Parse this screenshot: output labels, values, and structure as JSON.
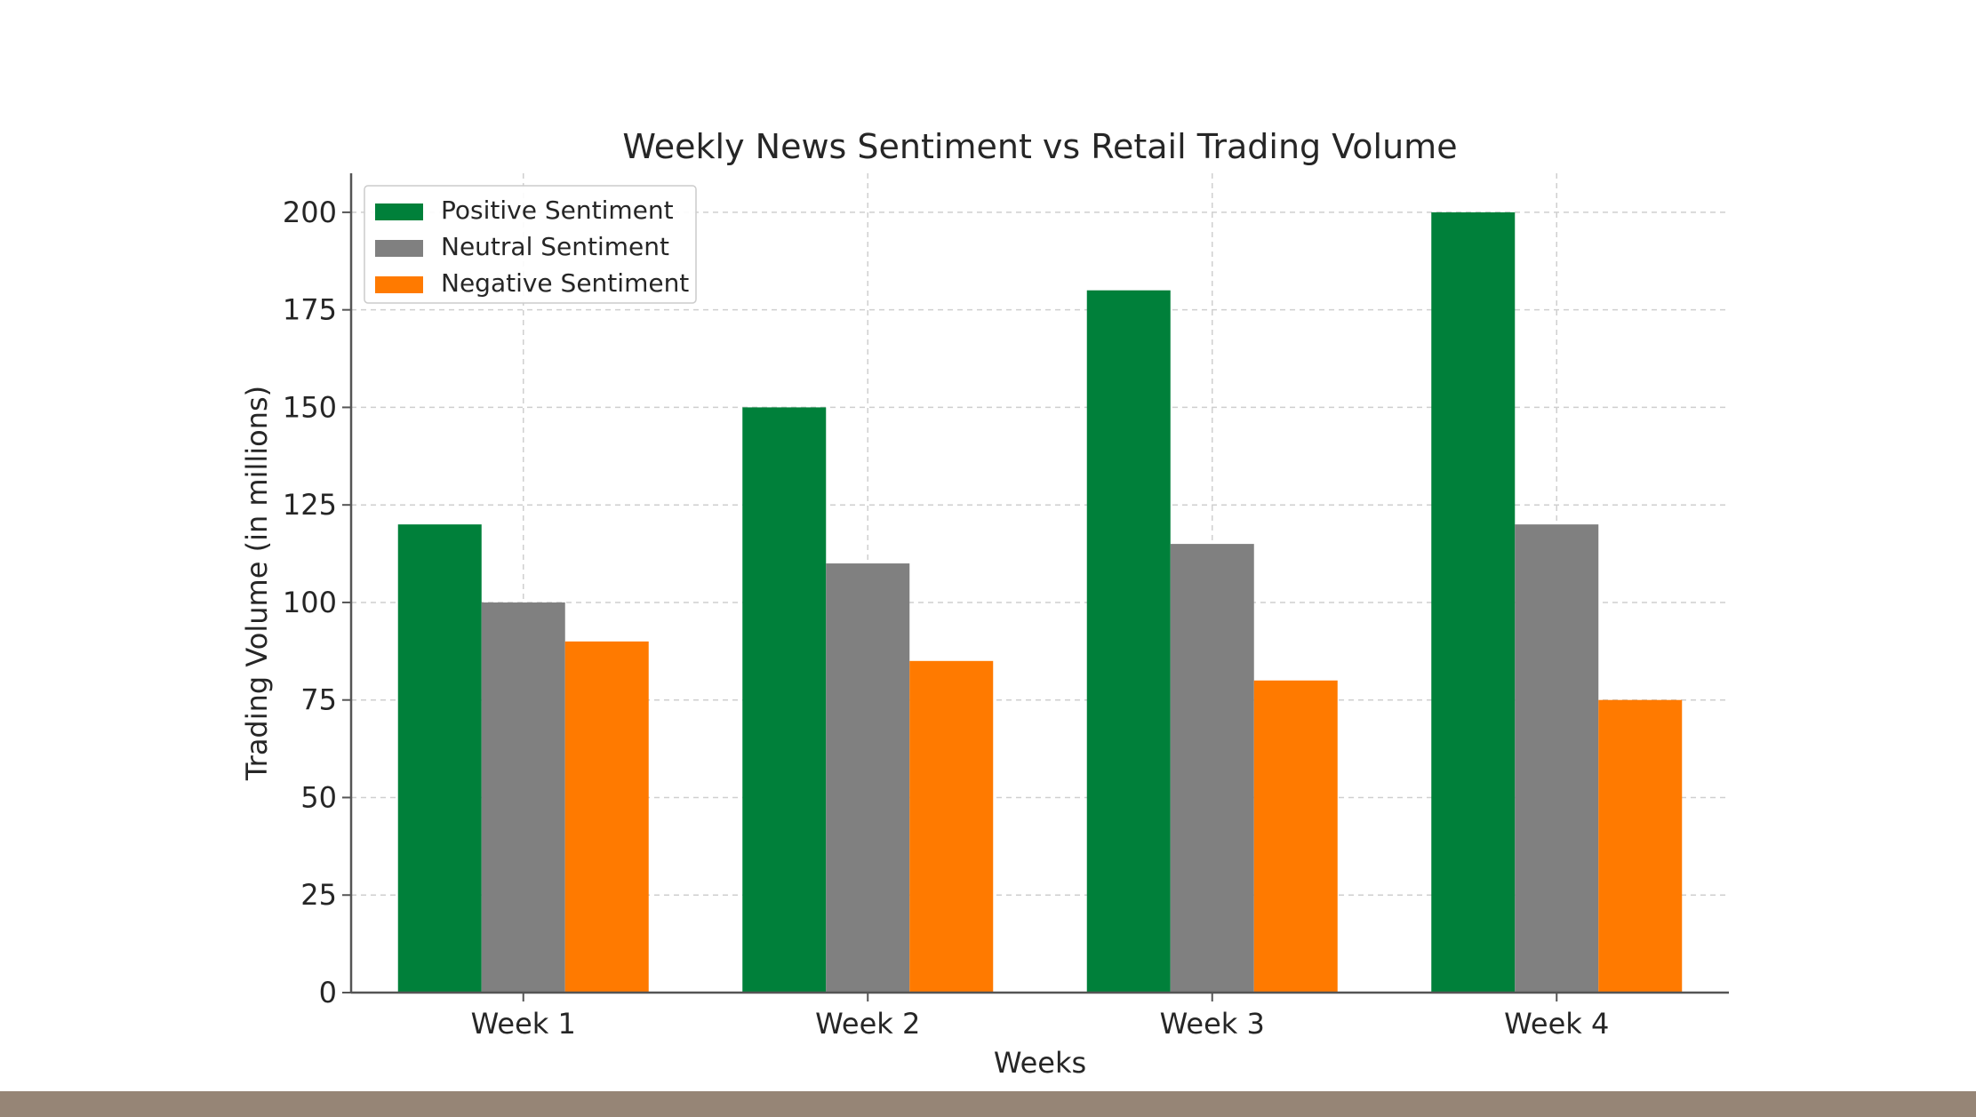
{
  "colors": {
    "background": "#ffffff",
    "footer_band": "#968576",
    "axis": "#555555",
    "grid": "#cfcfcf",
    "text": "#262626"
  },
  "chart_data": {
    "type": "bar",
    "title": "Weekly News Sentiment vs Retail Trading Volume",
    "xlabel": "Weeks",
    "ylabel": "Trading Volume (in millions)",
    "categories": [
      "Week 1",
      "Week 2",
      "Week 3",
      "Week 4"
    ],
    "series": [
      {
        "name": "Positive Sentiment",
        "color": "#00803a",
        "values": [
          120,
          150,
          180,
          200
        ]
      },
      {
        "name": "Neutral Sentiment",
        "color": "#808080",
        "values": [
          100,
          110,
          115,
          120
        ]
      },
      {
        "name": "Negative Sentiment",
        "color": "#ff7a00",
        "values": [
          90,
          85,
          80,
          75
        ]
      }
    ],
    "ylim": [
      0,
      210
    ],
    "yticks": [
      0,
      25,
      50,
      75,
      100,
      125,
      150,
      175,
      200
    ],
    "grid": true,
    "grid_style": "dashed",
    "legend_position": "top-left"
  }
}
